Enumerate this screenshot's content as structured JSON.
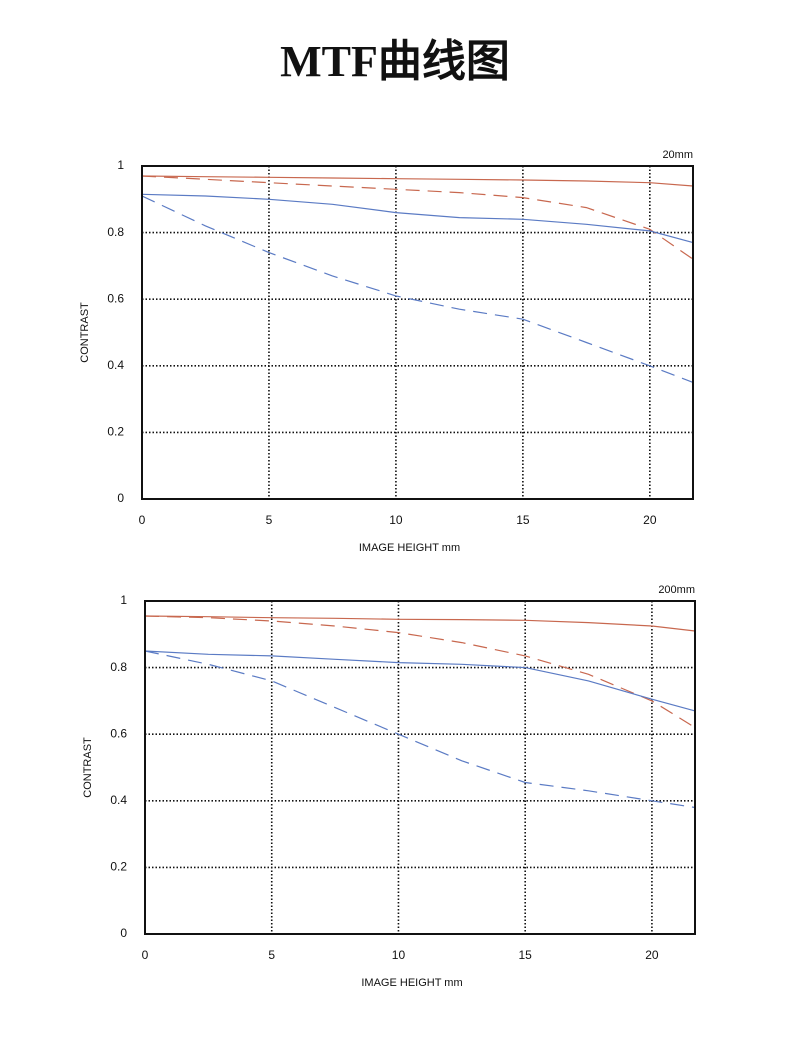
{
  "title": "MTF曲线图",
  "chart_data": [
    {
      "type": "line",
      "annotation": "20mm",
      "xlabel": "IMAGE HEIGHT  mm",
      "ylabel": "CONTRAST",
      "x": [
        0,
        2.5,
        5,
        7.5,
        10,
        12.5,
        15,
        17.5,
        20,
        21.7
      ],
      "xlim": [
        0,
        21.7
      ],
      "xticks": [
        0,
        5,
        10,
        15,
        20
      ],
      "ylim": [
        0,
        1
      ],
      "yticks": [
        0,
        0.2,
        0.4,
        0.6,
        0.8,
        1
      ],
      "grid": true,
      "series": [
        {
          "color": "#c8684f",
          "dashed": false,
          "values": [
            0.97,
            0.968,
            0.966,
            0.964,
            0.962,
            0.96,
            0.958,
            0.955,
            0.95,
            0.94
          ]
        },
        {
          "color": "#c8684f",
          "dashed": true,
          "values": [
            0.97,
            0.96,
            0.95,
            0.94,
            0.93,
            0.92,
            0.905,
            0.875,
            0.81,
            0.72
          ]
        },
        {
          "color": "#5b7bc4",
          "dashed": false,
          "values": [
            0.915,
            0.91,
            0.9,
            0.885,
            0.86,
            0.845,
            0.84,
            0.825,
            0.805,
            0.77
          ]
        },
        {
          "color": "#5b7bc4",
          "dashed": true,
          "values": [
            0.91,
            0.82,
            0.74,
            0.67,
            0.61,
            0.57,
            0.54,
            0.47,
            0.4,
            0.35
          ]
        }
      ]
    },
    {
      "type": "line",
      "annotation": "200mm",
      "xlabel": "IMAGE HEIGHT  mm",
      "ylabel": "CONTRAST",
      "x": [
        0,
        2.5,
        5,
        7.5,
        10,
        12.5,
        15,
        17.5,
        20,
        21.7
      ],
      "xlim": [
        0,
        21.7
      ],
      "xticks": [
        0,
        5,
        10,
        15,
        20
      ],
      "ylim": [
        0,
        1
      ],
      "yticks": [
        0,
        0.2,
        0.4,
        0.6,
        0.8,
        1
      ],
      "grid": true,
      "series": [
        {
          "color": "#c8684f",
          "dashed": false,
          "values": [
            0.955,
            0.953,
            0.95,
            0.948,
            0.945,
            0.944,
            0.942,
            0.935,
            0.925,
            0.91
          ]
        },
        {
          "color": "#c8684f",
          "dashed": true,
          "values": [
            0.955,
            0.95,
            0.94,
            0.925,
            0.905,
            0.875,
            0.835,
            0.78,
            0.7,
            0.62
          ]
        },
        {
          "color": "#5b7bc4",
          "dashed": false,
          "values": [
            0.85,
            0.84,
            0.835,
            0.825,
            0.815,
            0.81,
            0.8,
            0.76,
            0.705,
            0.67
          ]
        },
        {
          "color": "#5b7bc4",
          "dashed": true,
          "values": [
            0.85,
            0.81,
            0.76,
            0.68,
            0.6,
            0.52,
            0.455,
            0.43,
            0.4,
            0.38
          ]
        }
      ]
    }
  ]
}
